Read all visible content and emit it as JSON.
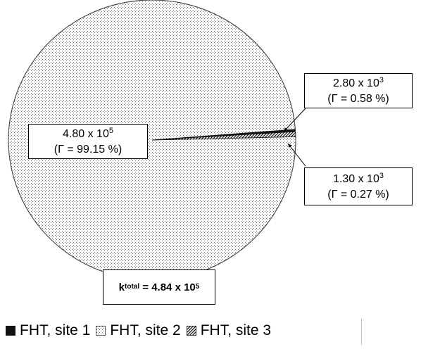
{
  "chart_data": {
    "type": "pie",
    "title": "",
    "series": [
      {
        "name": "FHT, site 1",
        "k": "1.30 x 10",
        "k_exp": "3",
        "gamma": "(Γ = 0.27 %)",
        "value": 0.27,
        "color": "#111111",
        "pattern": "solid"
      },
      {
        "name": "FHT, site 2",
        "k": "4.80 x 10",
        "k_exp": "5",
        "gamma": "(Γ = 99.15 %)",
        "value": 99.15,
        "color": "#ffffff",
        "pattern": "dots"
      },
      {
        "name": "FHT, site 3",
        "k": "2.80 x 10",
        "k_exp": "3",
        "gamma": "(Γ = 0.58 %)",
        "value": 0.58,
        "color": "#555555",
        "pattern": "diagonal-hatch"
      }
    ],
    "total": {
      "label_main": "k",
      "label_sub": "total",
      "equals": "= 4.84 x 10",
      "exp": "5"
    },
    "legend_position": "bottom"
  }
}
